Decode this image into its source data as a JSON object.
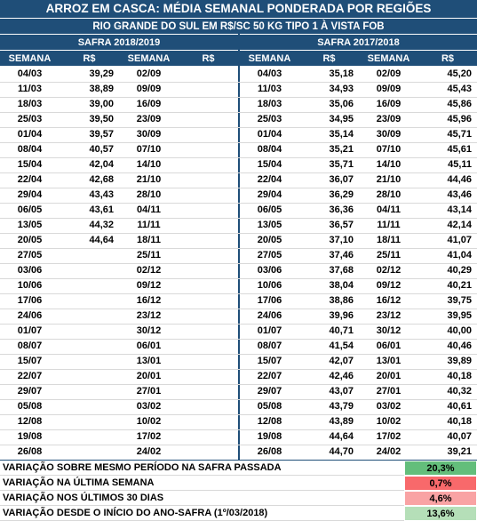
{
  "header": {
    "title": "ARROZ EM CASCA: MÉDIA SEMANAL PONDERADA POR REGIÕES",
    "subtitle": "RIO GRANDE DO SUL EM R$/SC 50 KG TIPO 1 À VISTA FOB",
    "left_safra": "SAFRA 2018/2019",
    "right_safra": "SAFRA 2017/2018",
    "columns": [
      "SEMANA",
      "R$",
      "SEMANA",
      "R$",
      "SEMANA",
      "R$",
      "SEMANA",
      "R$"
    ]
  },
  "rows": [
    {
      "left": [
        "04/03",
        "39,29",
        "02/09",
        null
      ],
      "right": [
        "04/03",
        "35,18",
        "02/09",
        "45,20"
      ]
    },
    {
      "left": [
        "11/03",
        "38,89",
        "09/09",
        null
      ],
      "right": [
        "11/03",
        "34,93",
        "09/09",
        "45,43"
      ]
    },
    {
      "left": [
        "18/03",
        "39,00",
        "16/09",
        null
      ],
      "right": [
        "18/03",
        "35,06",
        "16/09",
        "45,86"
      ]
    },
    {
      "left": [
        "25/03",
        "39,50",
        "23/09",
        null
      ],
      "right": [
        "25/03",
        "34,95",
        "23/09",
        "45,96"
      ]
    },
    {
      "left": [
        "01/04",
        "39,57",
        "30/09",
        null
      ],
      "right": [
        "01/04",
        "35,14",
        "30/09",
        "45,71"
      ]
    },
    {
      "left": [
        "08/04",
        "40,57",
        "07/10",
        null
      ],
      "right": [
        "08/04",
        "35,21",
        "07/10",
        "45,61"
      ]
    },
    {
      "left": [
        "15/04",
        "42,04",
        "14/10",
        null
      ],
      "right": [
        "15/04",
        "35,71",
        "14/10",
        "45,11"
      ]
    },
    {
      "left": [
        "22/04",
        "42,68",
        "21/10",
        null
      ],
      "right": [
        "22/04",
        "36,07",
        "21/10",
        "44,46"
      ]
    },
    {
      "left": [
        "29/04",
        "43,43",
        "28/10",
        null
      ],
      "right": [
        "29/04",
        "36,29",
        "28/10",
        "43,46"
      ]
    },
    {
      "left": [
        "06/05",
        "43,61",
        "04/11",
        null
      ],
      "right": [
        "06/05",
        "36,36",
        "04/11",
        "43,14"
      ]
    },
    {
      "left": [
        "13/05",
        "44,32",
        "11/11",
        null
      ],
      "right": [
        "13/05",
        "36,57",
        "11/11",
        "42,14"
      ]
    },
    {
      "left": [
        "20/05",
        "44,64",
        "18/11",
        null
      ],
      "right": [
        "20/05",
        "37,10",
        "18/11",
        "41,07"
      ]
    },
    {
      "left": [
        "27/05",
        null,
        "25/11",
        null
      ],
      "right": [
        "27/05",
        "37,46",
        "25/11",
        "41,04"
      ]
    },
    {
      "left": [
        "03/06",
        null,
        "02/12",
        null
      ],
      "right": [
        "03/06",
        "37,68",
        "02/12",
        "40,29"
      ]
    },
    {
      "left": [
        "10/06",
        null,
        "09/12",
        null
      ],
      "right": [
        "10/06",
        "38,04",
        "09/12",
        "40,21"
      ]
    },
    {
      "left": [
        "17/06",
        null,
        "16/12",
        null
      ],
      "right": [
        "17/06",
        "38,86",
        "16/12",
        "39,75"
      ]
    },
    {
      "left": [
        "24/06",
        null,
        "23/12",
        null
      ],
      "right": [
        "24/06",
        "39,96",
        "23/12",
        "39,95"
      ]
    },
    {
      "left": [
        "01/07",
        null,
        "30/12",
        null
      ],
      "right": [
        "01/07",
        "40,71",
        "30/12",
        "40,00"
      ]
    },
    {
      "left": [
        "08/07",
        null,
        "06/01",
        null
      ],
      "right": [
        "08/07",
        "41,54",
        "06/01",
        "40,46"
      ]
    },
    {
      "left": [
        "15/07",
        null,
        "13/01",
        null
      ],
      "right": [
        "15/07",
        "42,07",
        "13/01",
        "39,89"
      ]
    },
    {
      "left": [
        "22/07",
        null,
        "20/01",
        null
      ],
      "right": [
        "22/07",
        "42,46",
        "20/01",
        "40,18"
      ]
    },
    {
      "left": [
        "29/07",
        null,
        "27/01",
        null
      ],
      "right": [
        "29/07",
        "43,07",
        "27/01",
        "40,32"
      ]
    },
    {
      "left": [
        "05/08",
        null,
        "03/02",
        null
      ],
      "right": [
        "05/08",
        "43,79",
        "03/02",
        "40,61"
      ]
    },
    {
      "left": [
        "12/08",
        null,
        "10/02",
        null
      ],
      "right": [
        "12/08",
        "43,89",
        "10/02",
        "40,18"
      ]
    },
    {
      "left": [
        "19/08",
        null,
        "17/02",
        null
      ],
      "right": [
        "19/08",
        "44,64",
        "17/02",
        "40,07"
      ]
    },
    {
      "left": [
        "26/08",
        null,
        "24/02",
        null
      ],
      "right": [
        "26/08",
        "44,70",
        "24/02",
        "39,21"
      ]
    }
  ],
  "footer": [
    {
      "label": "VARIAÇÃO SOBRE MESMO PERÍODO NA SAFRA PASSADA",
      "value": "20,3%",
      "color": "#63be7b"
    },
    {
      "label": "VARIAÇÃO NA ÚLTIMA SEMANA",
      "value": "0,7%",
      "color": "#f8696b"
    },
    {
      "label": "VARIAÇÃO NOS ÚLTIMOS 30 DIAS",
      "value": "4,6%",
      "color": "#f9a3a4"
    },
    {
      "label": "VARIAÇÃO DESDE O INÍCIO DO ANO-SAFRA (1º/03/2018)",
      "value": "13,6%",
      "color": "#b5dfb8"
    }
  ]
}
